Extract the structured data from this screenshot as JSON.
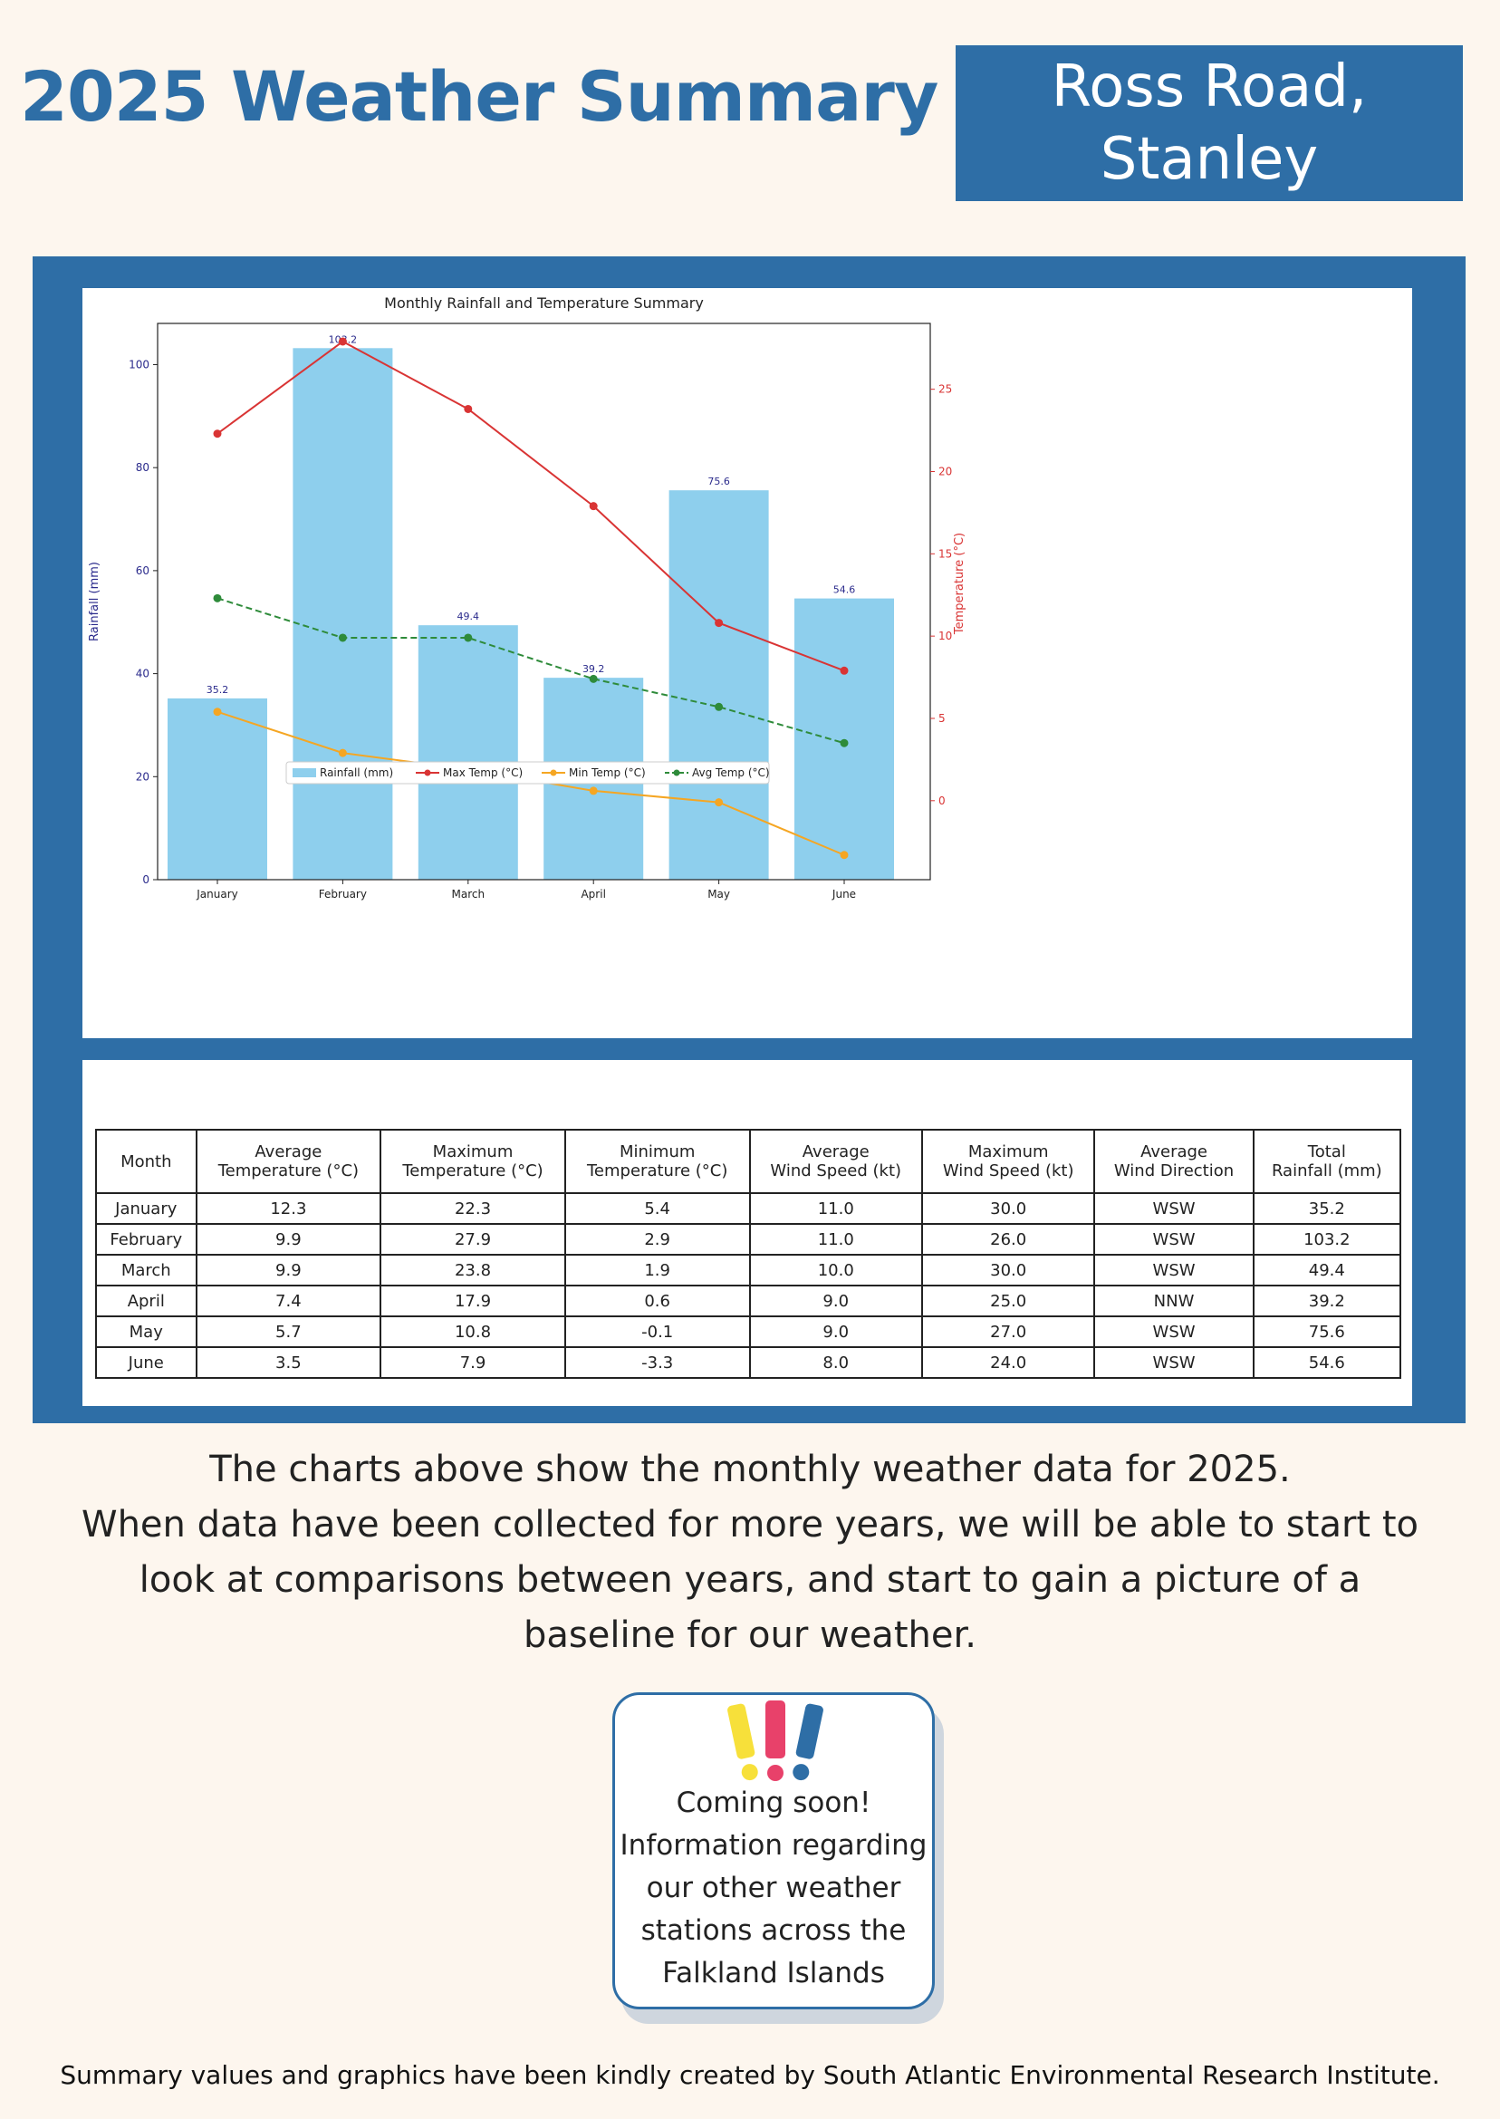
{
  "header": {
    "title": "2025 Weather Summary",
    "location_line1": "Ross Road,",
    "location_line2": "Stanley"
  },
  "colors": {
    "brand_blue": "#2e6ea6",
    "rainfall": "#8ecfed",
    "max_temp": "#d93434",
    "min_temp": "#f5a623",
    "avg_temp": "#2e8b3a",
    "background": "#fdf6ee"
  },
  "chart_data": {
    "type": "bar",
    "title": "Monthly Rainfall and Temperature Summary",
    "categories": [
      "January",
      "February",
      "March",
      "April",
      "May",
      "June"
    ],
    "ylabel": "Rainfall (mm)",
    "y2label": "Temperature (°C)",
    "ylim": [
      0,
      108
    ],
    "y2lim": [
      -4.8,
      29
    ],
    "yticks": [
      0,
      20,
      40,
      60,
      80,
      100
    ],
    "y2ticks": [
      0,
      5,
      10,
      15,
      20,
      25
    ],
    "grid": false,
    "legend_position": "bottom-center",
    "series": [
      {
        "name": "Rainfall (mm)",
        "type": "bar",
        "axis": "left",
        "values": [
          35.2,
          103.2,
          49.4,
          39.2,
          75.6,
          54.6
        ],
        "color": "#8ecfed",
        "labels": [
          "35.2",
          "103.2",
          "49.4",
          "39.2",
          "75.6",
          "54.6"
        ]
      },
      {
        "name": "Max Temp (°C)",
        "type": "line",
        "axis": "right",
        "dash": "solid",
        "values": [
          22.3,
          27.9,
          23.8,
          17.9,
          10.8,
          7.9
        ],
        "color": "#d93434"
      },
      {
        "name": "Min Temp (°C)",
        "type": "line",
        "axis": "right",
        "dash": "solid",
        "values": [
          5.4,
          2.9,
          1.9,
          0.6,
          -0.1,
          -3.3
        ],
        "color": "#f5a623"
      },
      {
        "name": "Avg Temp (°C)",
        "type": "line",
        "axis": "right",
        "dash": "dashed",
        "values": [
          12.3,
          9.9,
          9.9,
          7.4,
          5.7,
          3.5
        ],
        "color": "#2e8b3a"
      }
    ]
  },
  "table": {
    "headers": [
      [
        "Average",
        "Temperature (°C)"
      ],
      [
        "Maximum",
        "Temperature (°C)"
      ],
      [
        "Minimum",
        "Temperature (°C)"
      ],
      [
        "Average",
        "Wind Speed (kt)"
      ],
      [
        "Maximum",
        "Wind Speed (kt)"
      ],
      [
        "Average",
        "Wind Direction"
      ],
      [
        "Total",
        "Rainfall (mm)"
      ]
    ],
    "month_header": "Month",
    "rows": [
      [
        "January",
        "12.3",
        "22.3",
        "5.4",
        "11.0",
        "30.0",
        "WSW",
        "35.2"
      ],
      [
        "February",
        "9.9",
        "27.9",
        "2.9",
        "11.0",
        "26.0",
        "WSW",
        "103.2"
      ],
      [
        "March",
        "9.9",
        "23.8",
        "1.9",
        "10.0",
        "30.0",
        "WSW",
        "49.4"
      ],
      [
        "April",
        "7.4",
        "17.9",
        "0.6",
        "9.0",
        "25.0",
        "NNW",
        "39.2"
      ],
      [
        "May",
        "5.7",
        "10.8",
        "-0.1",
        "9.0",
        "27.0",
        "WSW",
        "75.6"
      ],
      [
        "June",
        "3.5",
        "7.9",
        "-3.3",
        "8.0",
        "24.0",
        "WSW",
        "54.6"
      ]
    ]
  },
  "body_text": [
    "The charts above show the monthly weather data for 2025.",
    "When data have been collected for more years, we will be able to start to",
    "look at comparisons between years, and start to gain a picture of a",
    "baseline for our weather."
  ],
  "coming_soon": {
    "icon": "exclamation-marks-icon",
    "lines": [
      "Coming soon!",
      "Information regarding",
      "our other weather",
      "stations across the",
      "Falkland Islands"
    ]
  },
  "footer": "Summary values and graphics have been kindly created by South Atlantic Environmental Research Institute."
}
